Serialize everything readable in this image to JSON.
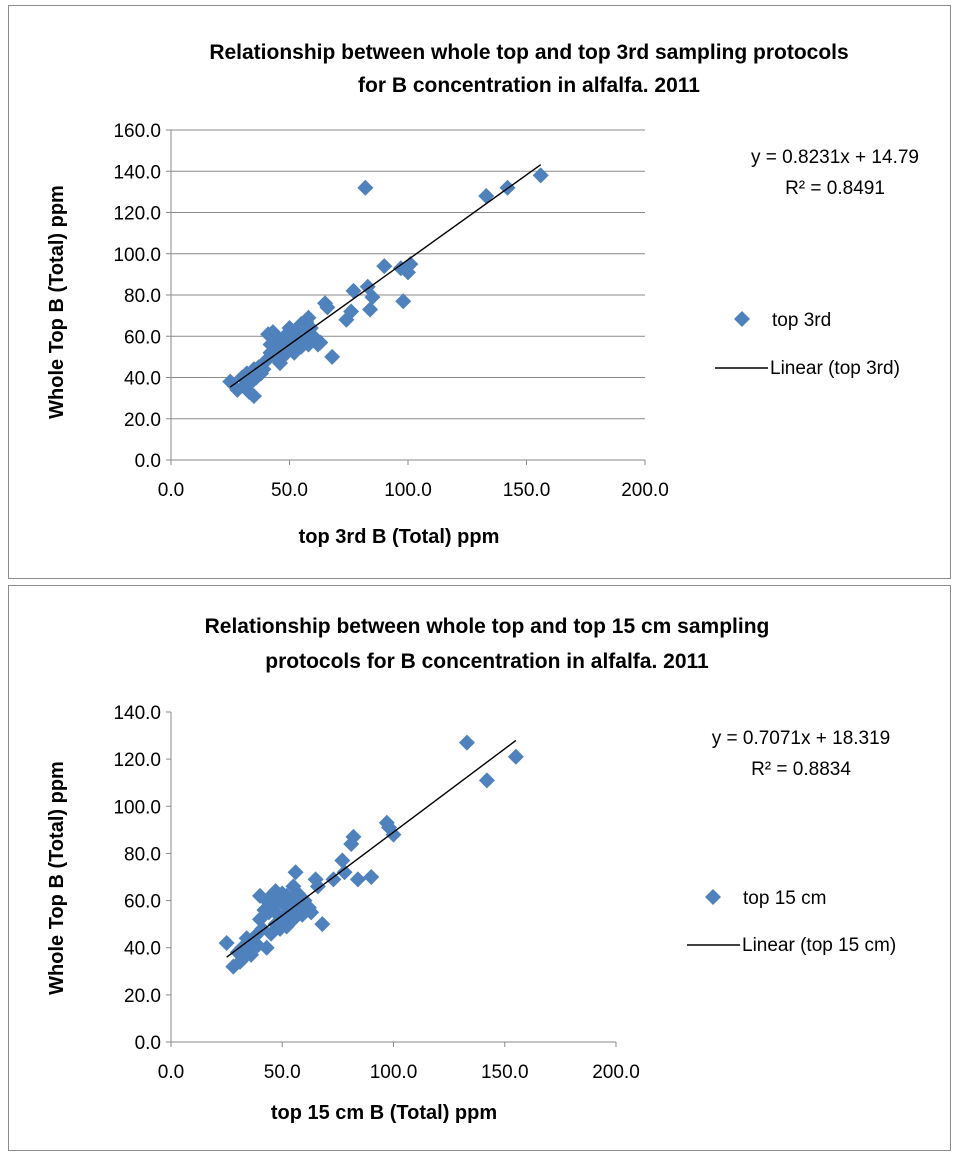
{
  "chart_data": [
    {
      "type": "scatter",
      "title": [
        "Relationship between whole top and top 3rd sampling protocols",
        "for B concentration in alfalfa. 2011"
      ],
      "xlabel": "top 3rd B (Total) ppm",
      "ylabel": "Whole Top B (Total) ppm",
      "xlim": [
        0,
        200
      ],
      "ylim": [
        0,
        160
      ],
      "xticks": [
        "0.0",
        "50.0",
        "100.0",
        "150.0",
        "200.0"
      ],
      "yticks": [
        "0.0",
        "20.0",
        "40.0",
        "60.0",
        "80.0",
        "100.0",
        "120.0",
        "140.0",
        "160.0"
      ],
      "grid": true,
      "legend_position": "right",
      "series": [
        {
          "name": "top 3rd",
          "color": "#4f81bd",
          "marker": "diamond",
          "points": [
            [
              25,
              38
            ],
            [
              28,
              34
            ],
            [
              30,
              40
            ],
            [
              31,
              36
            ],
            [
              32,
              42
            ],
            [
              33,
              33
            ],
            [
              34,
              38
            ],
            [
              35,
              44
            ],
            [
              35,
              31
            ],
            [
              36,
              40
            ],
            [
              37,
              45
            ],
            [
              38,
              42
            ],
            [
              39,
              44
            ],
            [
              40,
              48
            ],
            [
              41,
              61
            ],
            [
              42,
              56
            ],
            [
              42,
              52
            ],
            [
              43,
              62
            ],
            [
              44,
              60
            ],
            [
              44,
              50
            ],
            [
              45,
              55
            ],
            [
              46,
              58
            ],
            [
              46,
              47
            ],
            [
              47,
              53
            ],
            [
              48,
              60
            ],
            [
              48,
              51
            ],
            [
              49,
              57
            ],
            [
              50,
              64
            ],
            [
              50,
              55
            ],
            [
              51,
              61
            ],
            [
              52,
              52
            ],
            [
              53,
              60
            ],
            [
              53,
              57
            ],
            [
              54,
              63
            ],
            [
              55,
              55
            ],
            [
              55,
              66
            ],
            [
              56,
              59
            ],
            [
              57,
              67
            ],
            [
              57,
              61
            ],
            [
              58,
              69
            ],
            [
              58,
              56
            ],
            [
              59,
              64
            ],
            [
              60,
              60
            ],
            [
              61,
              58
            ],
            [
              62,
              56
            ],
            [
              63,
              57
            ],
            [
              65,
              76
            ],
            [
              66,
              74
            ],
            [
              68,
              50
            ],
            [
              74,
              68
            ],
            [
              76,
              72
            ],
            [
              77,
              82
            ],
            [
              82,
              132
            ],
            [
              83,
              84
            ],
            [
              84,
              73
            ],
            [
              85,
              79
            ],
            [
              90,
              94
            ],
            [
              97,
              93
            ],
            [
              98,
              77
            ],
            [
              100,
              91
            ],
            [
              101,
              95
            ],
            [
              133,
              128
            ],
            [
              142,
              132
            ],
            [
              156,
              138
            ]
          ]
        },
        {
          "name": "Linear (top 3rd)",
          "type": "trendline",
          "color": "#000000",
          "slope": 0.8231,
          "intercept": 14.79,
          "x_range": [
            25,
            156
          ]
        }
      ],
      "annotations": [
        "y = 0.8231x + 14.79",
        "R² = 0.8491"
      ]
    },
    {
      "type": "scatter",
      "title": [
        "Relationship between whole top and top 15 cm sampling",
        "protocols for B concentration in alfalfa.  2011"
      ],
      "xlabel": "top 15 cm B (Total) ppm",
      "ylabel": "Whole Top B (Total) ppm",
      "xlim": [
        0,
        200
      ],
      "ylim": [
        0,
        140
      ],
      "xticks": [
        "0.0",
        "50.0",
        "100.0",
        "150.0",
        "200.0"
      ],
      "yticks": [
        "0.0",
        "20.0",
        "40.0",
        "60.0",
        "80.0",
        "100.0",
        "120.0",
        "140.0"
      ],
      "grid": false,
      "legend_position": "right",
      "series": [
        {
          "name": "top 15 cm",
          "color": "#4f81bd",
          "marker": "diamond",
          "points": [
            [
              25,
              42
            ],
            [
              28,
              32
            ],
            [
              30,
              38
            ],
            [
              31,
              34
            ],
            [
              32,
              40
            ],
            [
              33,
              36
            ],
            [
              34,
              44
            ],
            [
              35,
              38
            ],
            [
              36,
              37
            ],
            [
              37,
              42
            ],
            [
              38,
              45
            ],
            [
              39,
              41
            ],
            [
              40,
              52
            ],
            [
              40,
              62
            ],
            [
              41,
              48
            ],
            [
              42,
              56
            ],
            [
              43,
              40
            ],
            [
              43,
              60
            ],
            [
              44,
              55
            ],
            [
              45,
              62
            ],
            [
              45,
              46
            ],
            [
              46,
              58
            ],
            [
              47,
              64
            ],
            [
              47,
              50
            ],
            [
              48,
              54
            ],
            [
              49,
              60
            ],
            [
              49,
              48
            ],
            [
              50,
              63
            ],
            [
              50,
              52
            ],
            [
              51,
              58
            ],
            [
              52,
              49
            ],
            [
              52,
              62
            ],
            [
              53,
              55
            ],
            [
              54,
              60
            ],
            [
              55,
              52
            ],
            [
              55,
              66
            ],
            [
              56,
              72
            ],
            [
              56,
              58
            ],
            [
              57,
              63
            ],
            [
              58,
              56
            ],
            [
              59,
              54
            ],
            [
              60,
              60
            ],
            [
              62,
              57
            ],
            [
              63,
              55
            ],
            [
              65,
              69
            ],
            [
              66,
              66
            ],
            [
              68,
              50
            ],
            [
              73,
              69
            ],
            [
              77,
              77
            ],
            [
              78,
              72
            ],
            [
              81,
              84
            ],
            [
              82,
              87
            ],
            [
              84,
              69
            ],
            [
              90,
              70
            ],
            [
              97,
              93
            ],
            [
              98,
              91
            ],
            [
              100,
              88
            ],
            [
              133,
              127
            ],
            [
              142,
              111
            ],
            [
              155,
              121
            ]
          ]
        },
        {
          "name": "Linear (top 15 cm)",
          "type": "trendline",
          "color": "#000000",
          "slope": 0.7071,
          "intercept": 18.319,
          "x_range": [
            25,
            155
          ]
        }
      ],
      "annotations": [
        "y = 0.7071x + 18.319",
        "R² = 0.8834"
      ]
    }
  ]
}
